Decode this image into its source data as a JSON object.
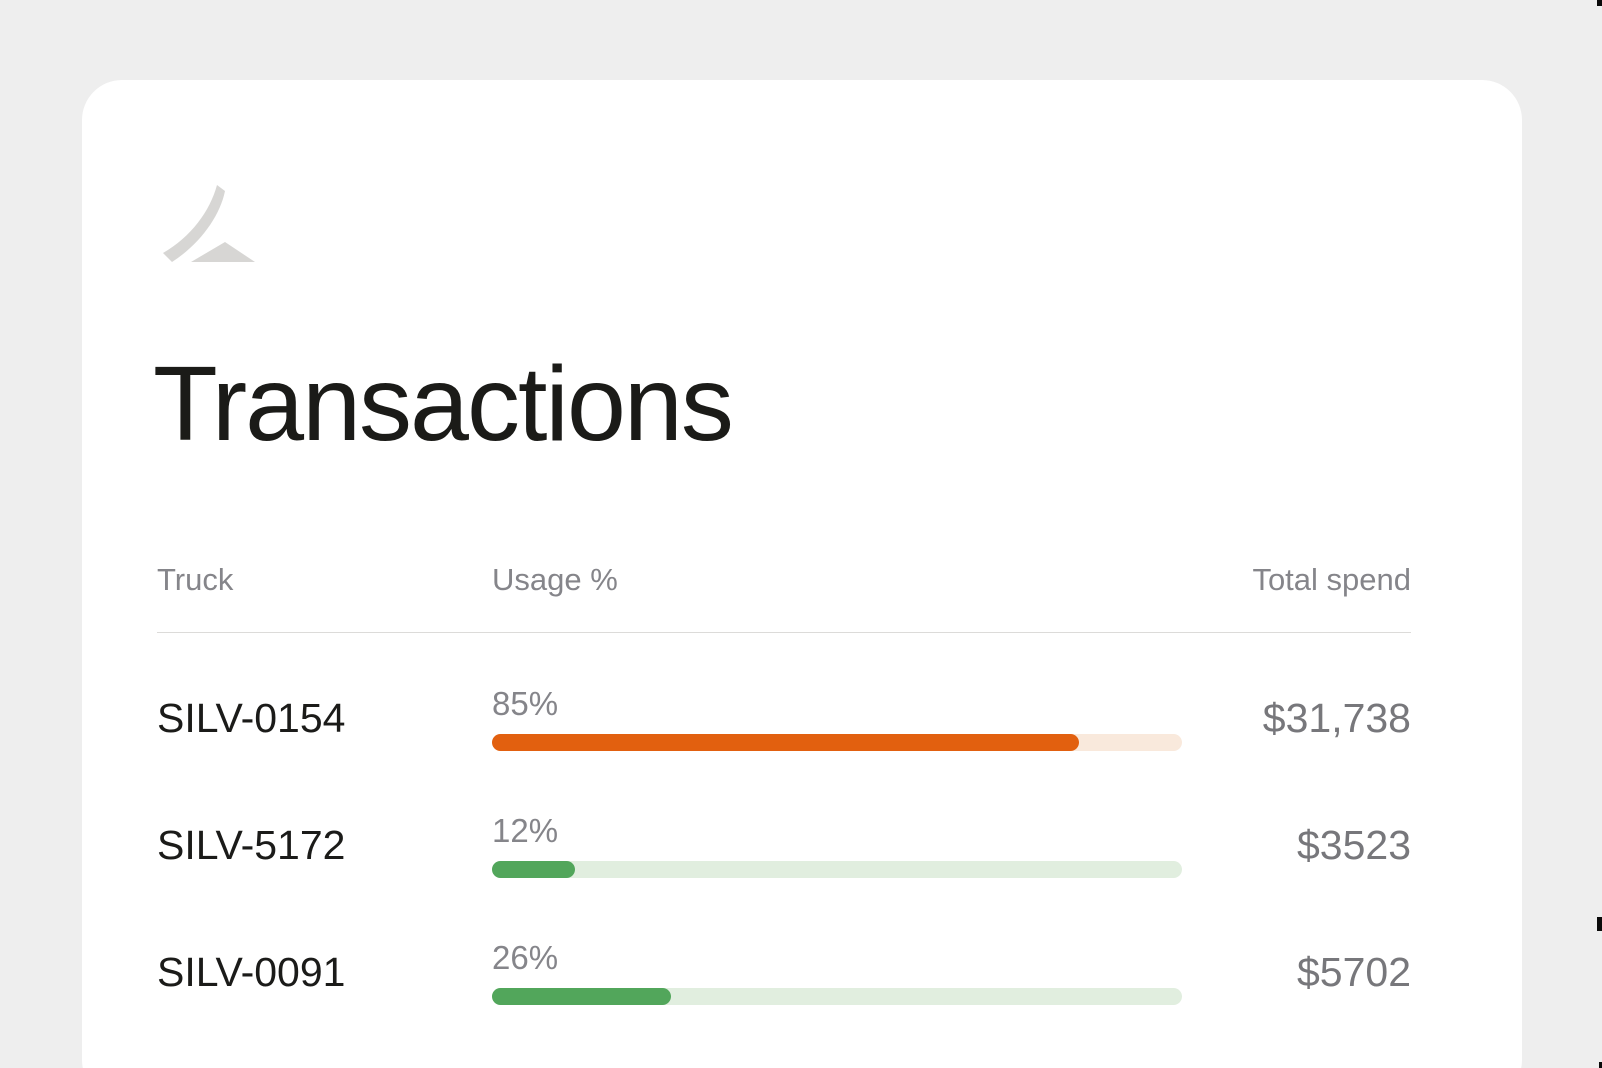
{
  "page": {
    "background_color": "#EEEEEE",
    "card_color": "#FFFFFF"
  },
  "header": {
    "title": "Transactions",
    "logo_icon": "swoosh-logo-icon",
    "logo_color": "#D7D6D4"
  },
  "table": {
    "columns": [
      {
        "key": "truck",
        "label": "Truck"
      },
      {
        "key": "usage",
        "label": "Usage %"
      },
      {
        "key": "spend",
        "label": "Total spend"
      }
    ],
    "rows": [
      {
        "truck": "SILV-0154",
        "usage_pct": 85,
        "usage_label": "85%",
        "spend": "$31,738",
        "bar_color": "#E2600F",
        "track_color": "#F9E9DC"
      },
      {
        "truck": "SILV-5172",
        "usage_pct": 12,
        "usage_label": "12%",
        "spend": "$3523",
        "bar_color": "#52A65B",
        "track_color": "#E1EEDF"
      },
      {
        "truck": "SILV-0091",
        "usage_pct": 26,
        "usage_label": "26%",
        "spend": "$5702",
        "bar_color": "#52A65B",
        "track_color": "#E1EEDF"
      }
    ]
  },
  "colors": {
    "title_text": "#1B1B18",
    "muted_text": "#85858A",
    "spend_text": "#77777B",
    "divider": "#DCDBD9"
  }
}
